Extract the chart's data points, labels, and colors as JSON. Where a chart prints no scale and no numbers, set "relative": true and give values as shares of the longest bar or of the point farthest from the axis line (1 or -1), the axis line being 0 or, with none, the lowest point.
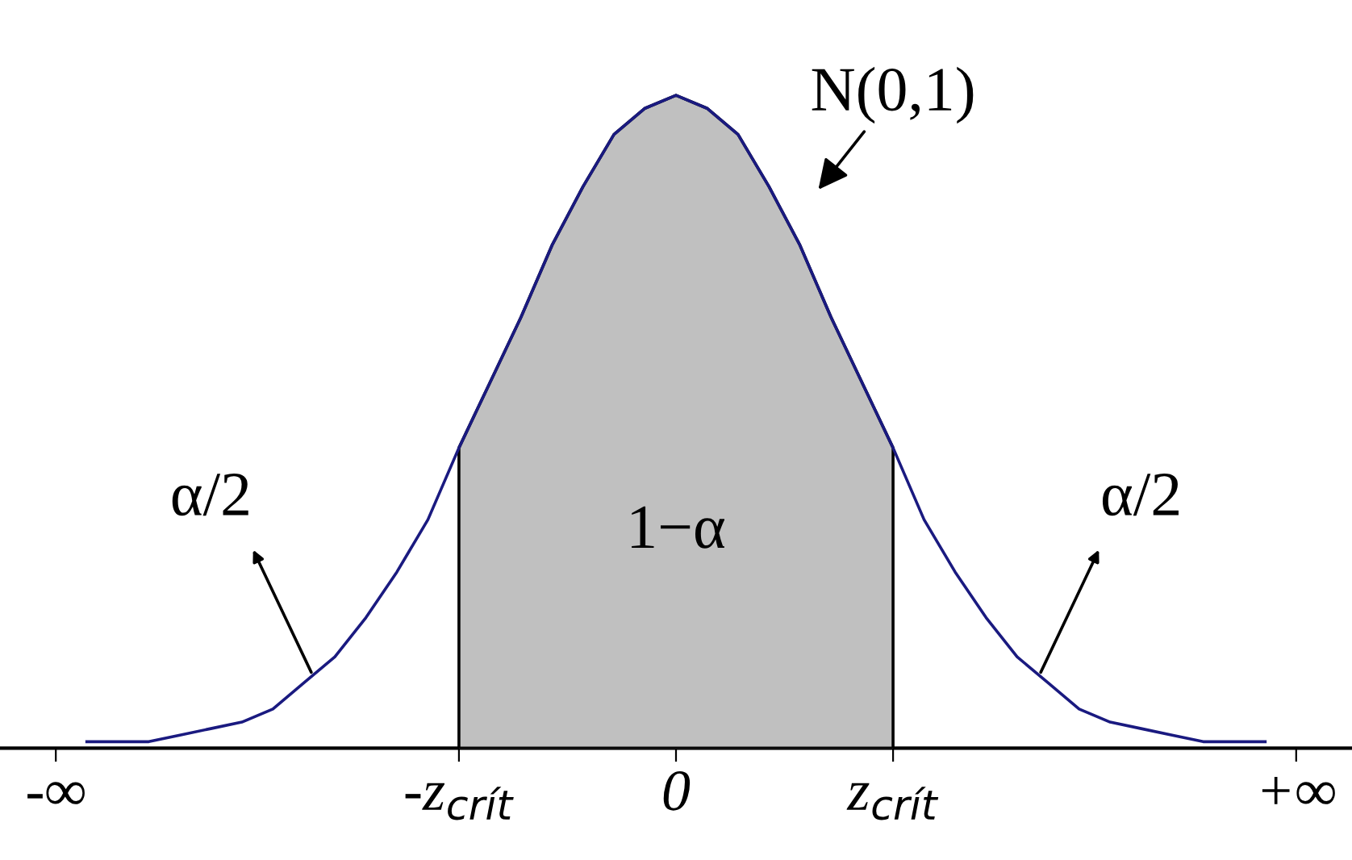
{
  "chart_data": {
    "type": "line",
    "relative": true,
    "legend": false,
    "grid": false,
    "categories": [
      "-∞",
      null,
      null,
      null,
      null,
      null,
      null,
      null,
      null,
      null,
      null,
      null,
      null,
      "-z$_{crít}$",
      null,
      null,
      null,
      null,
      null,
      null,
      "0",
      null,
      null,
      null,
      null,
      null,
      null,
      "z$_{crít}$",
      null,
      null,
      null,
      null,
      null,
      null,
      null,
      null,
      null,
      null,
      null,
      null,
      "+∞"
    ],
    "series": [
      {
        "color": "#1a1a80",
        "values": [
          null,
          0.01,
          0.01,
          0.01,
          0.02,
          0.03,
          0.04,
          0.06,
          0.1,
          0.14,
          0.2,
          0.27,
          0.35,
          0.46,
          0.56,
          0.66,
          0.77,
          0.86,
          0.94,
          0.98,
          1.0,
          0.98,
          0.94,
          0.86,
          0.77,
          0.66,
          0.56,
          0.46,
          0.35,
          0.27,
          0.2,
          0.14,
          0.1,
          0.06,
          0.04,
          0.03,
          0.02,
          0.01,
          0.01,
          0.01,
          null
        ]
      },
      {
        "type": "area",
        "color": "#c0c0c0",
        "values": [
          null,
          null,
          null,
          null,
          null,
          null,
          null,
          null,
          null,
          null,
          null,
          null,
          null,
          0.46,
          0.56,
          0.66,
          0.77,
          0.86,
          0.94,
          0.98,
          1.0,
          0.98,
          0.94,
          0.86,
          0.77,
          0.66,
          0.56,
          0.46,
          null,
          null,
          null,
          null,
          null,
          null,
          null,
          null,
          null,
          null,
          null,
          null,
          null
        ]
      }
    ],
    "annotations": [
      "N(0,1)",
      "1−α",
      "α/2",
      "α/2"
    ]
  }
}
